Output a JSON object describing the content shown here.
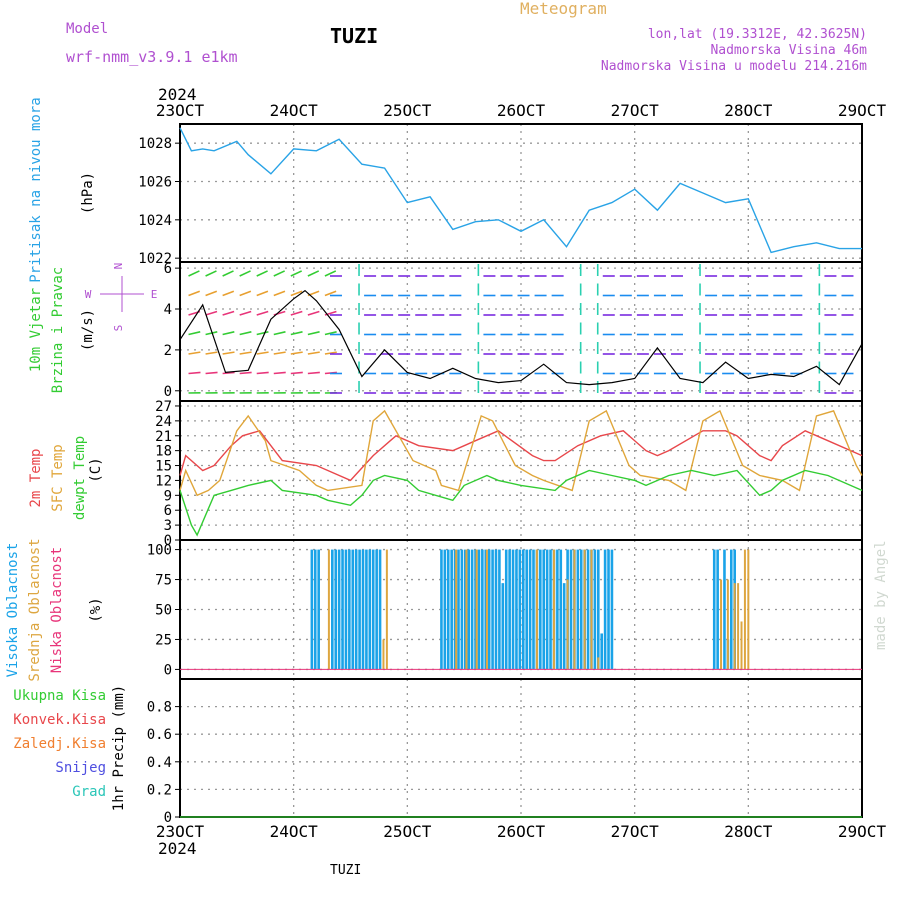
{
  "header": {
    "model_label": "Model",
    "model_name": "wrf-nmm_v3.9.1 e1km",
    "station": "TUZI",
    "title": "Meteogram",
    "lonlat": "lon,lat (19.3312E, 42.3625N)",
    "elevation": "Nadmorska Visina 46m",
    "model_elevation": "Nadmorska Visina u modelu 214.216m",
    "footer_station": "TUZI",
    "credit": "made by Angel"
  },
  "colors": {
    "pressure": "#29a3e6",
    "temp2m": "#e8474b",
    "sfc": "#e0a63a",
    "dewpoint": "#33cc33",
    "high_cloud": "#1aa3e8",
    "mid_cloud": "#dda640",
    "low_cloud": "#e8357a",
    "wind_speed": "#000000",
    "grid": "#999999",
    "title": "#e0b060",
    "meta": "#b050d0"
  },
  "chart_data": [
    {
      "id": "pressure",
      "type": "line",
      "ylabel_lines": [
        "Pritisak na nivou mora",
        "(hPa)"
      ],
      "year_label": "2024",
      "x_ticks": [
        "23OCT",
        "24OCT",
        "25OCT",
        "26OCT",
        "27OCT",
        "28OCT",
        "29OCT"
      ],
      "ylim": [
        1021.8,
        1029.0
      ],
      "y_ticks": [
        1022,
        1024,
        1026,
        1028
      ],
      "grid": true,
      "series": [
        {
          "x": [
            0,
            0.1,
            0.2,
            0.3,
            0.5,
            0.6,
            0.8,
            1.0,
            1.2,
            1.4,
            1.6,
            1.8,
            2.0,
            2.2,
            2.4,
            2.6,
            2.8,
            3.0,
            3.2,
            3.4,
            3.6,
            3.8,
            4.0,
            4.2,
            4.4,
            4.6,
            4.8,
            5.0,
            5.2,
            5.4,
            5.6,
            5.8,
            6.0
          ],
          "values": [
            1028.8,
            1027.6,
            1027.7,
            1027.6,
            1028.1,
            1027.4,
            1026.4,
            1027.7,
            1027.6,
            1028.2,
            1026.9,
            1026.7,
            1024.9,
            1025.2,
            1023.5,
            1023.9,
            1024.0,
            1023.4,
            1024.0,
            1022.6,
            1024.5,
            1024.9,
            1025.6,
            1024.5,
            1025.9,
            1025.4,
            1024.9,
            1025.1,
            1022.3,
            1022.6,
            1022.8,
            1022.5,
            1022.5
          ]
        }
      ]
    },
    {
      "id": "wind",
      "type": "line",
      "ylabel_lines": [
        "10m Vjetar",
        "Brzina i Pravac",
        "(m/s)"
      ],
      "compass": [
        "N",
        "W",
        "E",
        "S"
      ],
      "ylim": [
        -0.5,
        6.3
      ],
      "y_ticks": [
        0,
        2,
        4,
        6
      ],
      "grid": true,
      "series": [
        {
          "name": "wind speed",
          "x": [
            0.0,
            0.2,
            0.4,
            0.6,
            0.8,
            1.0,
            1.1,
            1.2,
            1.4,
            1.6,
            1.8,
            2.0,
            2.2,
            2.4,
            2.6,
            2.8,
            3.0,
            3.2,
            3.4,
            3.6,
            3.8,
            4.0,
            4.2,
            4.4,
            4.6,
            4.8,
            5.0,
            5.2,
            5.4,
            5.6,
            5.8,
            6.0
          ],
          "values": [
            2.5,
            4.2,
            0.9,
            1.0,
            3.5,
            4.5,
            4.9,
            4.4,
            3.0,
            0.7,
            2.0,
            0.9,
            0.6,
            1.1,
            0.6,
            0.4,
            0.5,
            1.3,
            0.4,
            0.3,
            0.4,
            0.6,
            2.1,
            0.6,
            0.4,
            1.4,
            0.6,
            0.8,
            0.7,
            1.2,
            0.3,
            2.3
          ]
        }
      ]
    },
    {
      "id": "temperature",
      "type": "line",
      "ylabel_lines": [
        "2m Temp",
        "SFC Temp",
        "dewpt Temp",
        "(C)"
      ],
      "ylim": [
        0,
        28
      ],
      "y_ticks": [
        0,
        3,
        6,
        9,
        12,
        15,
        18,
        21,
        24,
        27
      ],
      "grid": true,
      "series": [
        {
          "name": "2m Temp",
          "x": [
            0.0,
            0.05,
            0.2,
            0.3,
            0.45,
            0.55,
            0.7,
            0.8,
            0.9,
            1.2,
            1.3,
            1.5,
            1.7,
            1.85,
            1.9,
            2.1,
            2.4,
            2.5,
            2.6,
            2.8,
            3.1,
            3.2,
            3.3,
            3.5,
            3.7,
            3.9,
            4.1,
            4.2,
            4.3,
            4.6,
            4.8,
            4.9,
            5.1,
            5.2,
            5.3,
            5.5,
            5.7,
            6.0
          ],
          "values": [
            13,
            17,
            14,
            15,
            19,
            21,
            22,
            19,
            16,
            15,
            14,
            12,
            17,
            20,
            21,
            19,
            18,
            19,
            20,
            22,
            17,
            16,
            16,
            19,
            21,
            22,
            18,
            17,
            18,
            22,
            22,
            21,
            17,
            16,
            19,
            22,
            20,
            17
          ]
        },
        {
          "name": "SFC Temp",
          "x": [
            0.0,
            0.05,
            0.15,
            0.25,
            0.35,
            0.5,
            0.6,
            0.75,
            0.8,
            1.05,
            1.2,
            1.3,
            1.6,
            1.7,
            1.8,
            1.95,
            2.05,
            2.25,
            2.3,
            2.45,
            2.65,
            2.75,
            2.95,
            3.1,
            3.2,
            3.45,
            3.6,
            3.75,
            3.95,
            4.05,
            4.3,
            4.45,
            4.6,
            4.75,
            4.95,
            5.1,
            5.3,
            5.45,
            5.6,
            5.75,
            5.95,
            6.0
          ],
          "values": [
            10,
            14,
            9,
            10,
            12,
            22,
            25,
            20,
            16,
            14,
            11,
            10,
            11,
            24,
            26,
            20,
            16,
            14,
            11,
            10,
            25,
            24,
            15,
            13,
            12,
            10,
            24,
            26,
            15,
            13,
            12,
            10,
            24,
            26,
            15,
            13,
            12,
            10,
            25,
            26,
            15,
            13
          ]
        },
        {
          "name": "dewpt Temp",
          "x": [
            0.0,
            0.1,
            0.15,
            0.3,
            0.45,
            0.6,
            0.8,
            0.9,
            1.2,
            1.3,
            1.5,
            1.6,
            1.7,
            1.8,
            2.0,
            2.1,
            2.4,
            2.5,
            2.7,
            2.8,
            3.0,
            3.3,
            3.4,
            3.6,
            3.8,
            4.0,
            4.1,
            4.3,
            4.5,
            4.7,
            4.9,
            5.1,
            5.2,
            5.3,
            5.5,
            5.7,
            6.0
          ],
          "values": [
            10,
            3,
            1,
            9,
            10,
            11,
            12,
            10,
            9,
            8,
            7,
            9,
            12,
            13,
            12,
            10,
            8,
            11,
            13,
            12,
            11,
            10,
            12,
            14,
            13,
            12,
            11,
            13,
            14,
            13,
            14,
            9,
            10,
            12,
            14,
            13,
            10
          ]
        }
      ]
    },
    {
      "id": "clouds",
      "type": "bar",
      "ylabel_lines": [
        "Visoka Oblacnost",
        "Srednja Oblacnost",
        "Niska Oblacnost",
        "(%)"
      ],
      "ylim": [
        -8,
        108
      ],
      "y_ticks": [
        0,
        25,
        50,
        75,
        100
      ],
      "grid": true,
      "series": [
        {
          "name": "Visoka Oblacnost",
          "x": [
            1.16,
            1.19,
            1.22,
            1.34,
            1.37,
            1.4,
            1.43,
            1.46,
            1.49,
            1.52,
            1.55,
            1.58,
            1.61,
            1.64,
            1.67,
            1.7,
            1.73,
            1.76,
            2.3,
            2.33,
            2.36,
            2.39,
            2.42,
            2.45,
            2.48,
            2.51,
            2.54,
            2.57,
            2.6,
            2.63,
            2.66,
            2.69,
            2.72,
            2.75,
            2.78,
            2.81,
            2.84,
            2.87,
            2.9,
            2.93,
            2.96,
            2.99,
            3.02,
            3.05,
            3.08,
            3.11,
            3.14,
            3.17,
            3.2,
            3.23,
            3.26,
            3.29,
            3.32,
            3.35,
            3.38,
            3.41,
            3.44,
            3.47,
            3.5,
            3.53,
            3.56,
            3.59,
            3.62,
            3.65,
            3.68,
            3.71,
            3.74,
            3.77,
            3.8,
            4.7,
            4.73,
            4.79,
            4.82,
            4.85,
            4.88
          ],
          "values": [
            100,
            100,
            100,
            100,
            100,
            100,
            100,
            100,
            100,
            100,
            100,
            100,
            100,
            100,
            100,
            100,
            100,
            100,
            100,
            100,
            100,
            100,
            100,
            100,
            100,
            100,
            100,
            100,
            100,
            100,
            100,
            100,
            100,
            100,
            100,
            100,
            72,
            100,
            100,
            100,
            100,
            100,
            100,
            100,
            100,
            100,
            100,
            100,
            100,
            100,
            100,
            100,
            100,
            100,
            72,
            100,
            100,
            100,
            100,
            100,
            100,
            100,
            100,
            100,
            100,
            30,
            100,
            100,
            100,
            100,
            100,
            100,
            25,
            100,
            100
          ]
        },
        {
          "name": "Srednja Oblacnost",
          "x": [
            1.31,
            1.79,
            1.82,
            2.43,
            2.52,
            2.61,
            2.7,
            3.14,
            3.29,
            3.41,
            3.47,
            3.56,
            3.62,
            3.68,
            4.76,
            4.82,
            4.88,
            4.91,
            4.94,
            4.97,
            5.0
          ],
          "values": [
            100,
            25,
            100,
            100,
            100,
            100,
            100,
            100,
            100,
            75,
            100,
            100,
            100,
            10,
            75,
            75,
            72,
            72,
            40,
            100,
            100
          ]
        },
        {
          "name": "Niska Oblacnost",
          "x": [],
          "values": []
        }
      ]
    },
    {
      "id": "precip",
      "type": "line",
      "ylabel_lines": [
        "Ukupna Kisa",
        "Konvek.Kisa",
        "Zaledj.Kisa",
        "Snijeg",
        "Grad",
        "1hr Precip (mm)"
      ],
      "ylim": [
        0,
        1
      ],
      "y_ticks": [
        0,
        0.2,
        0.4,
        0.6,
        0.8
      ],
      "grid": true,
      "series": [
        {
          "name": "Ukupna Kisa",
          "x": [
            0,
            6
          ],
          "values": [
            0,
            0
          ]
        }
      ]
    }
  ]
}
